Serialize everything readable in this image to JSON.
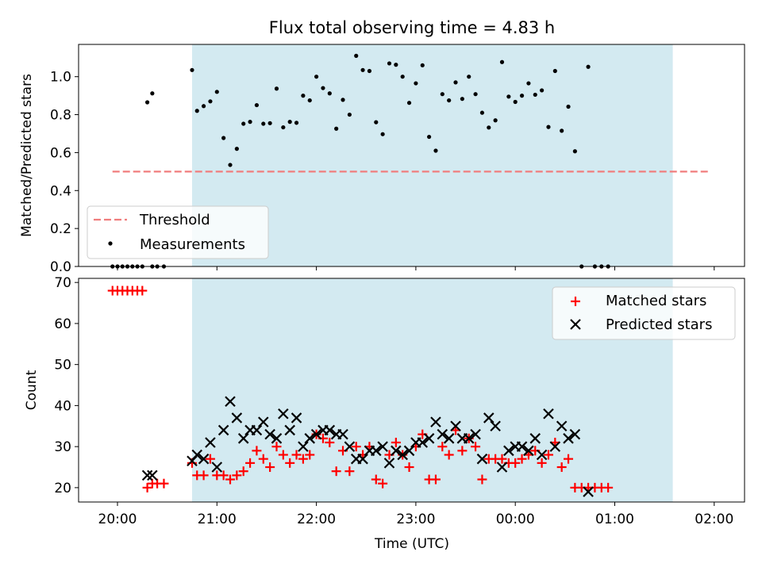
{
  "chart_data": [
    {
      "type": "scatter",
      "title": "Flux total observing time = 4.83 h",
      "xlabel": "",
      "ylabel": "Matched/Predicted stars",
      "ylim": [
        0,
        1.17
      ],
      "yticks": [
        "0.0",
        "0.2",
        "0.4",
        "0.6",
        "0.8",
        "1.0"
      ],
      "yticks_values": [
        0,
        0.2,
        0.4,
        0.6,
        0.8,
        1.0
      ],
      "legend": {
        "placement": "lower-left",
        "entries": [
          "Threshold",
          "Measurements"
        ]
      },
      "threshold": {
        "name": "Threshold",
        "value": 0.5,
        "x_start": "19:57",
        "x_end": "01:57",
        "color": "#f07d7d"
      },
      "shaded_span": {
        "start": "20:45",
        "end": "01:35",
        "color": "#d3eaf1"
      },
      "series": [
        {
          "name": "Measurements",
          "color": "#000000",
          "points": [
            [
              "19:57",
              0
            ],
            [
              "20:00",
              0
            ],
            [
              "20:03",
              0
            ],
            [
              "20:06",
              0
            ],
            [
              "20:09",
              0
            ],
            [
              "20:12",
              0
            ],
            [
              "20:15",
              0
            ],
            [
              "20:21",
              0
            ],
            [
              "20:24",
              0
            ],
            [
              "20:18",
              0.865
            ],
            [
              "20:21",
              0.912
            ],
            [
              "20:28",
              0
            ],
            [
              "20:45",
              1.035
            ],
            [
              "20:48",
              0.82
            ],
            [
              "20:52",
              0.845
            ],
            [
              "20:56",
              0.87
            ],
            [
              "21:00",
              0.92
            ],
            [
              "21:04",
              0.677
            ],
            [
              "21:08",
              0.535
            ],
            [
              "21:12",
              0.62
            ],
            [
              "21:16",
              0.752
            ],
            [
              "21:20",
              0.762
            ],
            [
              "21:24",
              0.85
            ],
            [
              "21:28",
              0.752
            ],
            [
              "21:32",
              0.755
            ],
            [
              "21:36",
              0.937
            ],
            [
              "21:40",
              0.733
            ],
            [
              "21:44",
              0.762
            ],
            [
              "21:48",
              0.757
            ],
            [
              "21:52",
              0.9
            ],
            [
              "21:56",
              0.875
            ],
            [
              "22:00",
              1.0
            ],
            [
              "22:04",
              0.94
            ],
            [
              "22:08",
              0.912
            ],
            [
              "22:12",
              0.726
            ],
            [
              "22:16",
              0.878
            ],
            [
              "22:20",
              0.8
            ],
            [
              "22:24",
              1.11
            ],
            [
              "22:28",
              1.035
            ],
            [
              "22:32",
              1.03
            ],
            [
              "22:36",
              0.76
            ],
            [
              "22:40",
              0.697
            ],
            [
              "22:44",
              1.07
            ],
            [
              "22:48",
              1.063
            ],
            [
              "22:52",
              1.0
            ],
            [
              "22:56",
              0.862
            ],
            [
              "23:00",
              0.965
            ],
            [
              "23:04",
              1.06
            ],
            [
              "23:08",
              0.683
            ],
            [
              "23:12",
              0.61
            ],
            [
              "23:16",
              0.908
            ],
            [
              "23:20",
              0.875
            ],
            [
              "23:24",
              0.97
            ],
            [
              "23:28",
              0.883
            ],
            [
              "23:32",
              1.0
            ],
            [
              "23:36",
              0.908
            ],
            [
              "23:40",
              0.81
            ],
            [
              "23:44",
              0.732
            ],
            [
              "23:48",
              0.77
            ],
            [
              "23:52",
              1.077
            ],
            [
              "23:56",
              0.895
            ],
            [
              "00:00",
              0.867
            ],
            [
              "00:04",
              0.9
            ],
            [
              "00:08",
              0.965
            ],
            [
              "00:12",
              0.905
            ],
            [
              "00:16",
              0.928
            ],
            [
              "00:20",
              0.735
            ],
            [
              "00:24",
              1.03
            ],
            [
              "00:28",
              0.715
            ],
            [
              "00:32",
              0.842
            ],
            [
              "00:36",
              0.607
            ],
            [
              "00:40",
              0
            ],
            [
              "00:44",
              1.052
            ],
            [
              "00:48",
              0
            ],
            [
              "00:52",
              0
            ],
            [
              "00:56",
              0
            ]
          ]
        }
      ]
    },
    {
      "type": "scatter",
      "title": "",
      "xlabel": "Time (UTC)",
      "ylabel": "Count",
      "ylim": [
        16.5,
        71
      ],
      "yticks": [
        "20",
        "30",
        "40",
        "50",
        "60",
        "70"
      ],
      "yticks_values": [
        20,
        30,
        40,
        50,
        60,
        70
      ],
      "xticks": [
        "20:00",
        "21:00",
        "22:00",
        "23:00",
        "00:00",
        "01:00",
        "02:00"
      ],
      "legend": {
        "placement": "top-right",
        "entries": [
          "Matched stars",
          "Predicted stars"
        ]
      },
      "shaded_span": {
        "start": "20:45",
        "end": "01:35",
        "color": "#d3eaf1"
      },
      "series": [
        {
          "name": "Matched stars",
          "marker": "plus",
          "color": "#ff0000",
          "points": [
            [
              "19:57",
              68
            ],
            [
              "20:00",
              68
            ],
            [
              "20:03",
              68
            ],
            [
              "20:06",
              68
            ],
            [
              "20:09",
              68
            ],
            [
              "20:12",
              68
            ],
            [
              "20:15",
              68
            ],
            [
              "20:18",
              20
            ],
            [
              "20:21",
              21
            ],
            [
              "20:24",
              21
            ],
            [
              "20:28",
              21
            ],
            [
              "20:45",
              26
            ],
            [
              "20:48",
              23
            ],
            [
              "20:52",
              23
            ],
            [
              "20:56",
              27
            ],
            [
              "21:00",
              23
            ],
            [
              "21:04",
              23
            ],
            [
              "21:08",
              22
            ],
            [
              "21:12",
              23
            ],
            [
              "21:16",
              24
            ],
            [
              "21:20",
              26
            ],
            [
              "21:24",
              29
            ],
            [
              "21:28",
              27
            ],
            [
              "21:32",
              25
            ],
            [
              "21:36",
              30
            ],
            [
              "21:40",
              28
            ],
            [
              "21:44",
              26
            ],
            [
              "21:48",
              28
            ],
            [
              "21:52",
              27
            ],
            [
              "21:56",
              28
            ],
            [
              "22:00",
              33
            ],
            [
              "22:04",
              32
            ],
            [
              "22:08",
              31
            ],
            [
              "22:12",
              24
            ],
            [
              "22:16",
              29
            ],
            [
              "22:20",
              24
            ],
            [
              "22:24",
              30
            ],
            [
              "22:28",
              28
            ],
            [
              "22:32",
              30
            ],
            [
              "22:36",
              22
            ],
            [
              "22:40",
              21
            ],
            [
              "22:44",
              28
            ],
            [
              "22:48",
              31
            ],
            [
              "22:52",
              28
            ],
            [
              "22:56",
              25
            ],
            [
              "23:00",
              30
            ],
            [
              "23:04",
              33
            ],
            [
              "23:08",
              22
            ],
            [
              "23:12",
              22
            ],
            [
              "23:16",
              30
            ],
            [
              "23:20",
              28
            ],
            [
              "23:24",
              34
            ],
            [
              "23:28",
              29
            ],
            [
              "23:32",
              32
            ],
            [
              "23:36",
              30
            ],
            [
              "23:40",
              22
            ],
            [
              "23:44",
              27
            ],
            [
              "23:48",
              27
            ],
            [
              "23:52",
              27
            ],
            [
              "23:56",
              26
            ],
            [
              "00:00",
              26
            ],
            [
              "00:04",
              27
            ],
            [
              "00:08",
              28
            ],
            [
              "00:12",
              29
            ],
            [
              "00:16",
              26
            ],
            [
              "00:20",
              28
            ],
            [
              "00:24",
              31
            ],
            [
              "00:28",
              25
            ],
            [
              "00:32",
              27
            ],
            [
              "00:36",
              20
            ],
            [
              "00:40",
              20
            ],
            [
              "00:44",
              20
            ],
            [
              "00:48",
              20
            ],
            [
              "00:52",
              20
            ],
            [
              "00:56",
              20
            ]
          ]
        },
        {
          "name": "Predicted stars",
          "marker": "x",
          "color": "#000000",
          "points": [
            [
              "20:18",
              23
            ],
            [
              "20:21",
              23
            ],
            [
              "20:45",
              26.5
            ],
            [
              "20:48",
              28
            ],
            [
              "20:52",
              27
            ],
            [
              "20:56",
              31
            ],
            [
              "21:00",
              25
            ],
            [
              "21:04",
              34
            ],
            [
              "21:08",
              41
            ],
            [
              "21:12",
              37
            ],
            [
              "21:16",
              32
            ],
            [
              "21:20",
              34
            ],
            [
              "21:24",
              34
            ],
            [
              "21:28",
              36
            ],
            [
              "21:32",
              33
            ],
            [
              "21:36",
              32
            ],
            [
              "21:40",
              38
            ],
            [
              "21:44",
              34
            ],
            [
              "21:48",
              37
            ],
            [
              "21:52",
              30
            ],
            [
              "21:56",
              32
            ],
            [
              "22:00",
              33
            ],
            [
              "22:04",
              34
            ],
            [
              "22:08",
              34
            ],
            [
              "22:12",
              33
            ],
            [
              "22:16",
              33
            ],
            [
              "22:20",
              30
            ],
            [
              "22:24",
              27
            ],
            [
              "22:28",
              27
            ],
            [
              "22:32",
              29
            ],
            [
              "22:36",
              29
            ],
            [
              "22:40",
              30
            ],
            [
              "22:44",
              26
            ],
            [
              "22:48",
              29
            ],
            [
              "22:52",
              28
            ],
            [
              "22:56",
              29
            ],
            [
              "23:00",
              31
            ],
            [
              "23:04",
              31
            ],
            [
              "23:08",
              32
            ],
            [
              "23:12",
              36
            ],
            [
              "23:16",
              33
            ],
            [
              "23:20",
              32
            ],
            [
              "23:24",
              35
            ],
            [
              "23:28",
              32
            ],
            [
              "23:32",
              32
            ],
            [
              "23:36",
              33
            ],
            [
              "23:40",
              27
            ],
            [
              "23:44",
              37
            ],
            [
              "23:48",
              35
            ],
            [
              "23:52",
              25
            ],
            [
              "23:56",
              29
            ],
            [
              "00:00",
              30
            ],
            [
              "00:04",
              30
            ],
            [
              "00:08",
              29
            ],
            [
              "00:12",
              32
            ],
            [
              "00:16",
              28
            ],
            [
              "00:20",
              38
            ],
            [
              "00:24",
              30
            ],
            [
              "00:28",
              35
            ],
            [
              "00:32",
              32
            ],
            [
              "00:36",
              33
            ],
            [
              "00:44",
              19
            ]
          ]
        }
      ]
    }
  ]
}
